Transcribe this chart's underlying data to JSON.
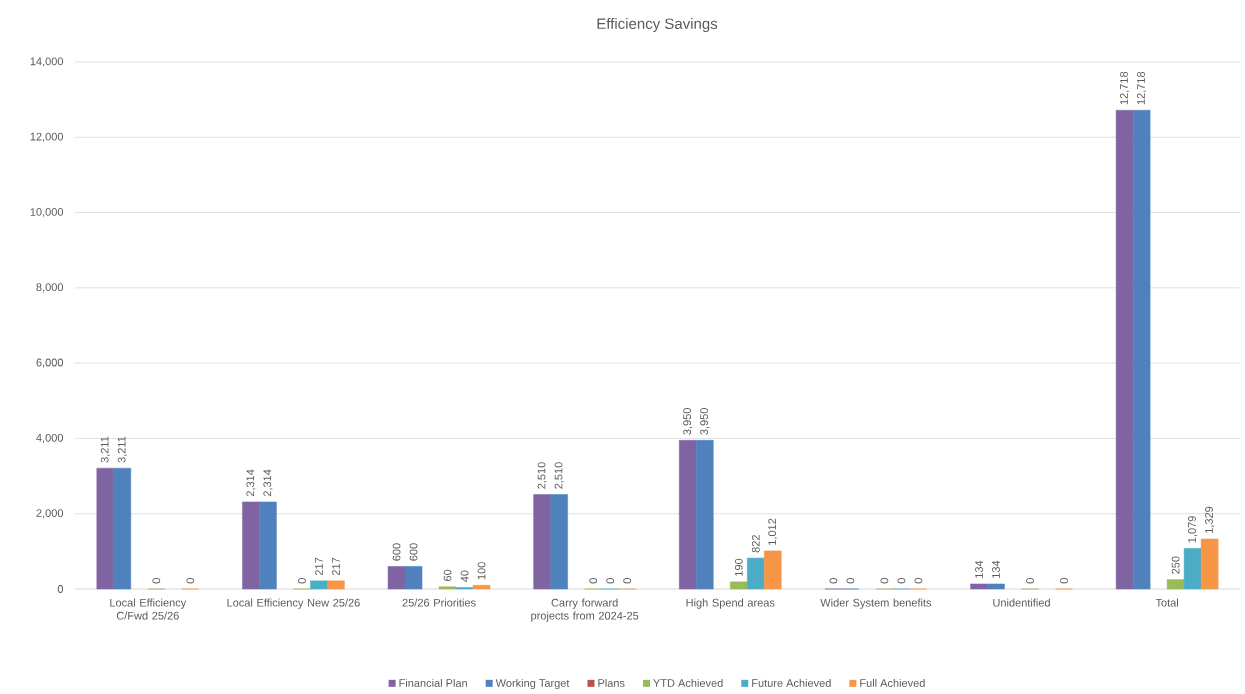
{
  "chart_data": {
    "type": "bar",
    "title": "Efficiency Savings",
    "categories": [
      "Local Efficiency C/Fwd 25/26",
      "Local Efficiency New 25/26",
      "25/26 Priorities",
      "Carry forward projects from 2024-25",
      "High Spend areas",
      "Wider System benefits",
      "Unidentified",
      "Total"
    ],
    "series": [
      {
        "name": "Financial Plan",
        "color": "#8064a2",
        "values": [
          3211,
          2314,
          600,
          2510,
          3950,
          0,
          134,
          12718
        ],
        "value_labels": [
          "3,211",
          "2,314",
          "600",
          "2,510",
          "3,950",
          "0",
          "134",
          "12,718"
        ]
      },
      {
        "name": "Working Target",
        "color": "#4f81bd",
        "values": [
          3211,
          2314,
          600,
          2510,
          3950,
          0,
          134,
          12718
        ],
        "value_labels": [
          "3,211",
          "2,314",
          "600",
          "2,510",
          "3,950",
          "0",
          "134",
          "12,718"
        ]
      },
      {
        "name": "Plans",
        "color": "#c0504d",
        "values": [
          null,
          null,
          null,
          null,
          null,
          null,
          null,
          null
        ]
      },
      {
        "name": "YTD Achieved",
        "color": "#9bbb59",
        "values": [
          0,
          0,
          60,
          0,
          190,
          0,
          0,
          250
        ],
        "value_labels": [
          "0",
          "0",
          "60",
          "0",
          "190",
          "0",
          "0",
          "250"
        ]
      },
      {
        "name": "Future Achieved",
        "color": "#4bacc6",
        "values": [
          null,
          217,
          40,
          0,
          822,
          0,
          null,
          1079
        ],
        "value_labels": [
          null,
          "217",
          "40",
          "0",
          "822",
          "0",
          null,
          "1,079"
        ]
      },
      {
        "name": "Full Achieved",
        "color": "#f79646",
        "values": [
          0,
          217,
          100,
          0,
          1012,
          0,
          0,
          1329
        ],
        "value_labels": [
          "0",
          "217",
          "100",
          "0",
          "1,012",
          "0",
          "0",
          "1,329"
        ]
      }
    ],
    "ylim": [
      0,
      14000
    ],
    "yticks": [
      0,
      {
        "value": 2000,
        "label": "2,000"
      },
      {
        "value": 4000,
        "label": "4,000"
      },
      {
        "value": 6000,
        "label": "6,000"
      },
      {
        "value": 8000,
        "label": "8,000"
      },
      {
        "value": 10000,
        "label": "10,000"
      },
      {
        "value": 12000,
        "label": "12,000"
      },
      {
        "value": 14000,
        "label": "14,000"
      }
    ],
    "grid": "y",
    "legend": "bottom"
  }
}
